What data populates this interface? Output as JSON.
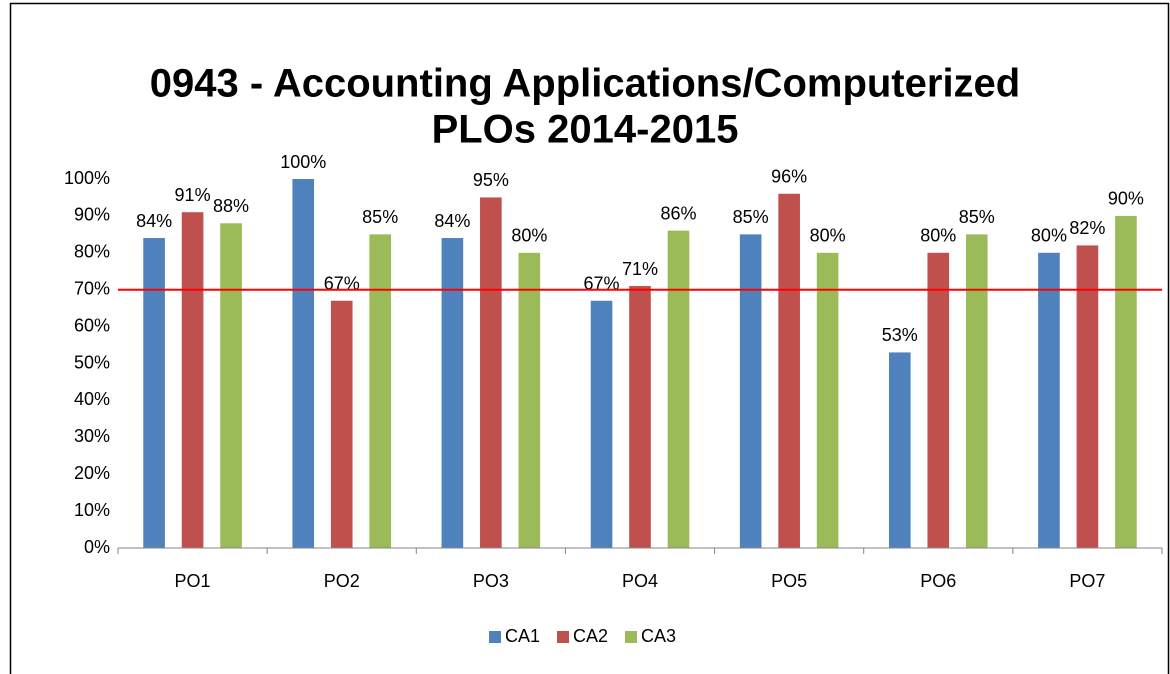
{
  "chart_data": {
    "type": "bar",
    "title": [
      "0943 - Accounting Applications/Computerized",
      "PLOs 2014-2015"
    ],
    "categories": [
      "PO1",
      "PO2",
      "PO3",
      "PO4",
      "PO5",
      "PO6",
      "PO7"
    ],
    "series": [
      {
        "name": "CA1",
        "color": "#4f81bd",
        "values": [
          84,
          100,
          84,
          67,
          85,
          53,
          80
        ],
        "value_labels": [
          "84%",
          "100%",
          "84%",
          "67%",
          "85%",
          "53%",
          "80%"
        ]
      },
      {
        "name": "CA2",
        "color": "#c0504d",
        "values": [
          91,
          67,
          95,
          71,
          96,
          80,
          82
        ],
        "value_labels": [
          "91%",
          "67%",
          "95%",
          "71%",
          "96%",
          "80%",
          "82%"
        ]
      },
      {
        "name": "CA3",
        "color": "#9bbb59",
        "values": [
          88,
          85,
          80,
          86,
          80,
          85,
          90
        ],
        "value_labels": [
          "88%",
          "85%",
          "80%",
          "86%",
          "80%",
          "85%",
          "90%"
        ]
      }
    ],
    "ylim": [
      0,
      100
    ],
    "yticks": [
      {
        "value": 0,
        "label": "0%"
      },
      {
        "value": 10,
        "label": "10%"
      },
      {
        "value": 20,
        "label": "20%"
      },
      {
        "value": 30,
        "label": "30%"
      },
      {
        "value": 40,
        "label": "40%"
      },
      {
        "value": 50,
        "label": "50%"
      },
      {
        "value": 60,
        "label": "60%"
      },
      {
        "value": 70,
        "label": "70%"
      },
      {
        "value": 80,
        "label": "80%"
      },
      {
        "value": 90,
        "label": "90%"
      },
      {
        "value": 100,
        "label": "100%"
      }
    ],
    "grid": false,
    "reference_line": {
      "value": 70,
      "color": "#ff0000"
    },
    "legend": "bottom"
  }
}
